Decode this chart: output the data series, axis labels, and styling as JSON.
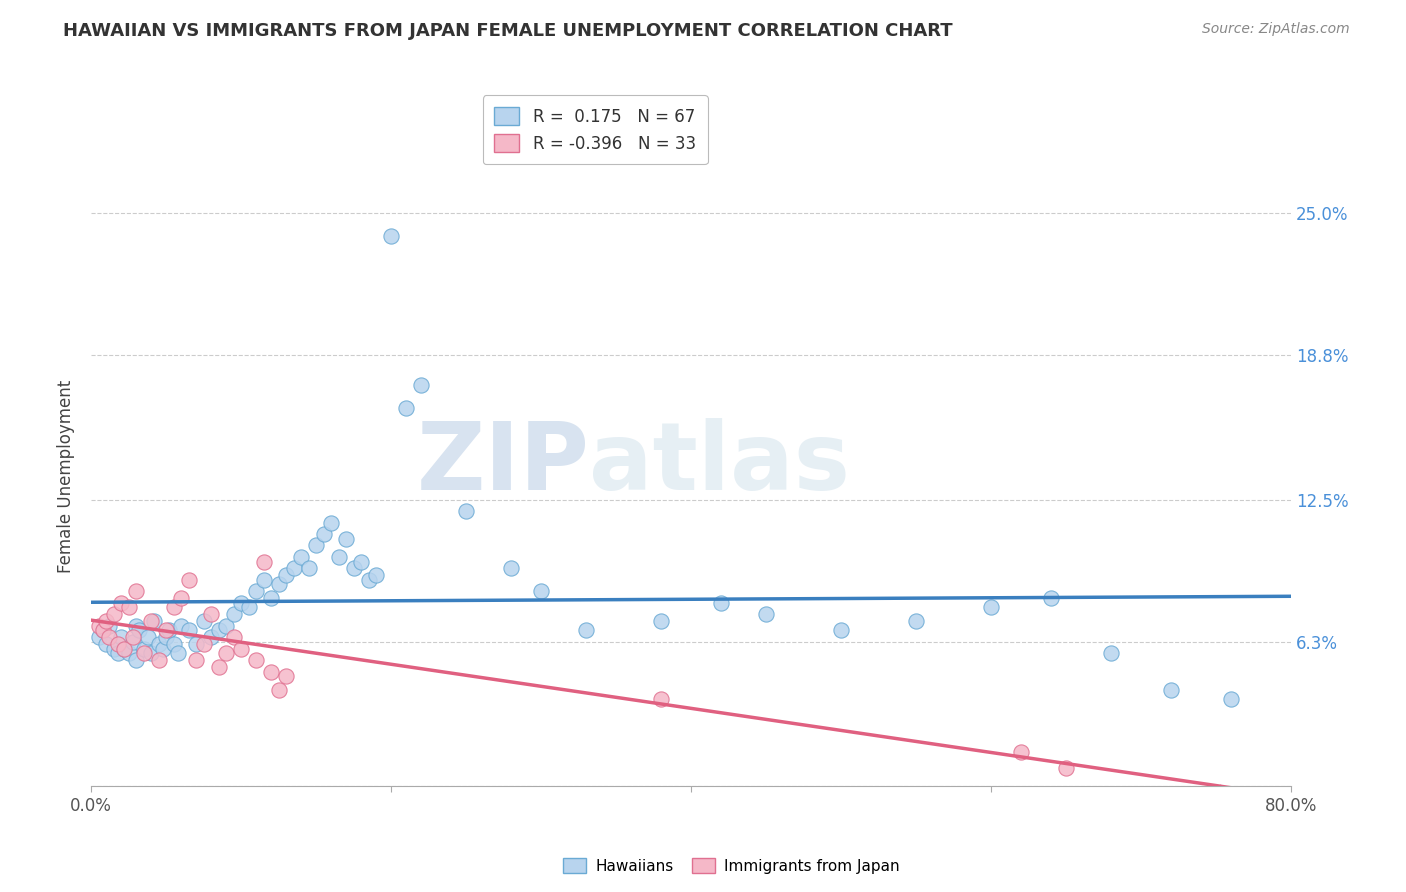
{
  "title": "HAWAIIAN VS IMMIGRANTS FROM JAPAN FEMALE UNEMPLOYMENT CORRELATION CHART",
  "source": "Source: ZipAtlas.com",
  "ylabel": "Female Unemployment",
  "xlim": [
    0,
    0.8
  ],
  "ylim": [
    -0.02,
    0.28
  ],
  "plot_ylim": [
    0,
    0.27
  ],
  "yticks": [
    0.0,
    0.063,
    0.125,
    0.188,
    0.25
  ],
  "ytick_labels": [
    "",
    "6.3%",
    "12.5%",
    "18.8%",
    "25.0%"
  ],
  "xticks": [
    0.0,
    0.2,
    0.4,
    0.6,
    0.8
  ],
  "xtick_labels": [
    "0.0%",
    "",
    "",
    "",
    "80.0%"
  ],
  "hawaiian_color": "#b8d4ee",
  "hawaiian_edge_color": "#6aaad4",
  "japan_color": "#f5b8c8",
  "japan_edge_color": "#e07090",
  "hawaiian_line_color": "#3a7fbf",
  "japan_line_color": "#e06080",
  "legend_label1": "R =  0.175   N = 67",
  "legend_label2": "R = -0.396   N = 33",
  "hawaiian_label": "Hawaiians",
  "japan_label": "Immigrants from Japan",
  "watermark_zip": "ZIP",
  "watermark_atlas": "atlas",
  "hawaiian_x": [
    0.005,
    0.008,
    0.01,
    0.012,
    0.015,
    0.018,
    0.02,
    0.022,
    0.025,
    0.028,
    0.03,
    0.03,
    0.032,
    0.035,
    0.038,
    0.04,
    0.042,
    0.045,
    0.048,
    0.05,
    0.052,
    0.055,
    0.058,
    0.06,
    0.065,
    0.07,
    0.075,
    0.08,
    0.085,
    0.09,
    0.095,
    0.1,
    0.105,
    0.11,
    0.115,
    0.12,
    0.125,
    0.13,
    0.135,
    0.14,
    0.145,
    0.15,
    0.155,
    0.16,
    0.165,
    0.17,
    0.175,
    0.18,
    0.185,
    0.19,
    0.2,
    0.21,
    0.22,
    0.25,
    0.28,
    0.3,
    0.33,
    0.38,
    0.42,
    0.45,
    0.5,
    0.55,
    0.6,
    0.64,
    0.68,
    0.72,
    0.76
  ],
  "hawaiian_y": [
    0.065,
    0.068,
    0.062,
    0.07,
    0.06,
    0.058,
    0.065,
    0.06,
    0.058,
    0.063,
    0.07,
    0.055,
    0.068,
    0.06,
    0.065,
    0.058,
    0.072,
    0.062,
    0.06,
    0.065,
    0.068,
    0.062,
    0.058,
    0.07,
    0.068,
    0.062,
    0.072,
    0.065,
    0.068,
    0.07,
    0.075,
    0.08,
    0.078,
    0.085,
    0.09,
    0.082,
    0.088,
    0.092,
    0.095,
    0.1,
    0.095,
    0.105,
    0.11,
    0.115,
    0.1,
    0.108,
    0.095,
    0.098,
    0.09,
    0.092,
    0.24,
    0.165,
    0.175,
    0.12,
    0.095,
    0.085,
    0.068,
    0.072,
    0.08,
    0.075,
    0.068,
    0.072,
    0.078,
    0.082,
    0.058,
    0.042,
    0.038
  ],
  "japan_x": [
    0.005,
    0.008,
    0.01,
    0.012,
    0.015,
    0.018,
    0.02,
    0.022,
    0.025,
    0.028,
    0.03,
    0.035,
    0.04,
    0.045,
    0.05,
    0.055,
    0.06,
    0.065,
    0.07,
    0.075,
    0.08,
    0.085,
    0.09,
    0.095,
    0.1,
    0.11,
    0.115,
    0.12,
    0.125,
    0.13,
    0.38,
    0.62,
    0.65
  ],
  "japan_y": [
    0.07,
    0.068,
    0.072,
    0.065,
    0.075,
    0.062,
    0.08,
    0.06,
    0.078,
    0.065,
    0.085,
    0.058,
    0.072,
    0.055,
    0.068,
    0.078,
    0.082,
    0.09,
    0.055,
    0.062,
    0.075,
    0.052,
    0.058,
    0.065,
    0.06,
    0.055,
    0.098,
    0.05,
    0.042,
    0.048,
    0.038,
    0.015,
    0.008
  ],
  "hawaiian_R": 0.175,
  "japan_R": -0.396
}
